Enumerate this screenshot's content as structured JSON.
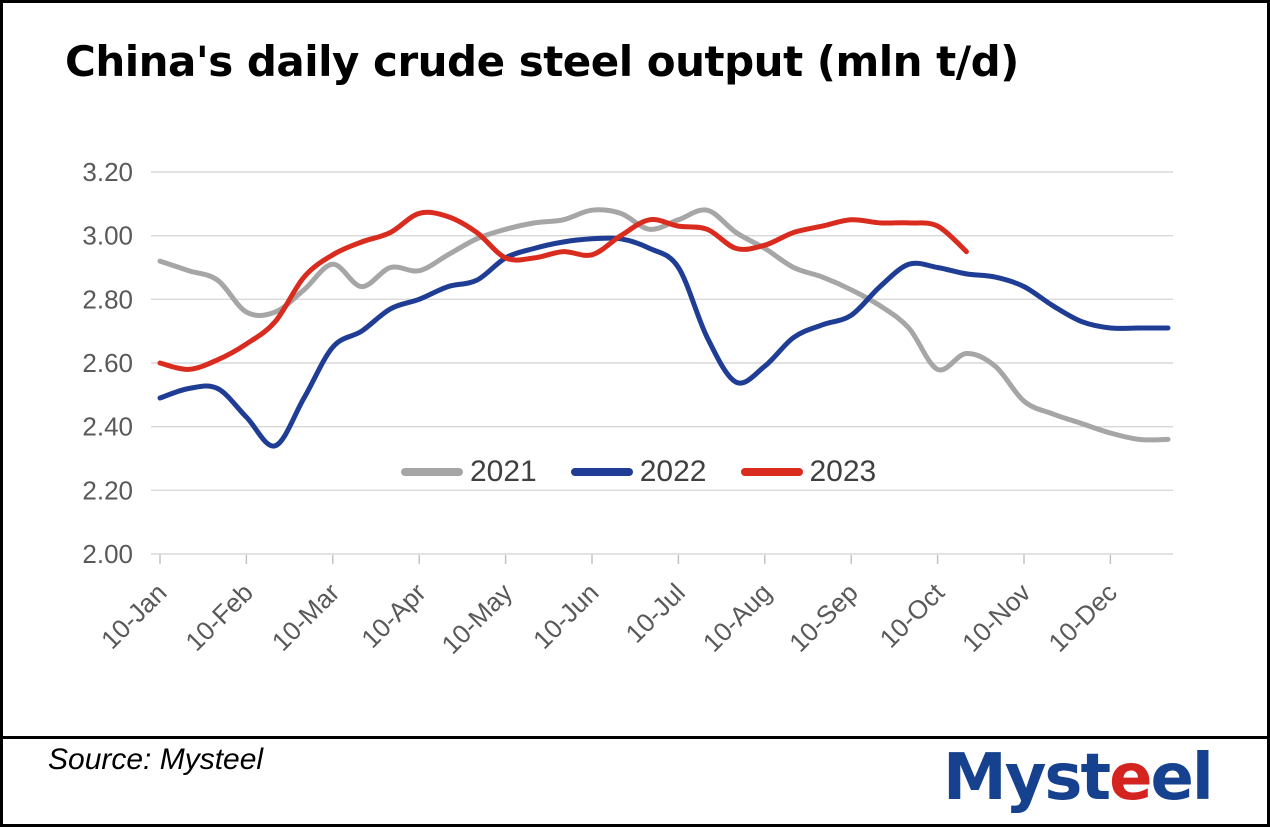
{
  "page": {
    "title": "China's daily crude steel output (mln t/d)"
  },
  "chart_data": {
    "type": "line",
    "title": "China's daily crude steel output (mln t/d)",
    "x_tick_labels": [
      "10-Jan",
      "10-Feb",
      "10-Mar",
      "10-Apr",
      "10-May",
      "10-Jun",
      "10-Jul",
      "10-Aug",
      "10-Sep",
      "10-Oct",
      "10-Nov",
      "10-Dec"
    ],
    "points_per_month": 3,
    "x_note": "data points at ~10-day intervals (10th, 20th, month-end)",
    "y_ticks": [
      "3.20",
      "3.00",
      "2.80",
      "2.60",
      "2.40",
      "2.20",
      "2.00"
    ],
    "ylim": [
      2.0,
      3.2
    ],
    "grid": true,
    "legend_position": "inside-bottom-center",
    "series": [
      {
        "name": "2021",
        "color": "#A6A6A6",
        "values": [
          2.92,
          2.89,
          2.86,
          2.76,
          2.76,
          2.83,
          2.91,
          2.84,
          2.9,
          2.89,
          2.94,
          2.99,
          3.02,
          3.04,
          3.05,
          3.08,
          3.07,
          3.02,
          3.05,
          3.08,
          3.01,
          2.96,
          2.9,
          2.87,
          2.83,
          2.78,
          2.71,
          2.58,
          2.63,
          2.59,
          2.48,
          2.44,
          2.41,
          2.38,
          2.36,
          2.36
        ]
      },
      {
        "name": "2022",
        "color": "#1F3D94",
        "values": [
          2.49,
          2.52,
          2.52,
          2.43,
          2.34,
          2.49,
          2.65,
          2.7,
          2.77,
          2.8,
          2.84,
          2.86,
          2.93,
          2.96,
          2.98,
          2.99,
          2.99,
          2.96,
          2.9,
          2.68,
          2.54,
          2.59,
          2.68,
          2.72,
          2.75,
          2.84,
          2.91,
          2.9,
          2.88,
          2.87,
          2.84,
          2.78,
          2.73,
          2.71,
          2.71,
          2.71
        ]
      },
      {
        "name": "2023",
        "color": "#D92B1E",
        "values": [
          2.6,
          2.58,
          2.61,
          2.66,
          2.73,
          2.87,
          2.94,
          2.98,
          3.01,
          3.07,
          3.06,
          3.01,
          2.93,
          2.93,
          2.95,
          2.94,
          3.0,
          3.05,
          3.03,
          3.02,
          2.96,
          2.97,
          3.01,
          3.03,
          3.05,
          3.04,
          3.04,
          3.03,
          2.95
        ]
      }
    ]
  },
  "footer": {
    "source_label": "Source: Mysteel",
    "logo": {
      "text": "Mysteel",
      "parts": [
        {
          "t": "Myst",
          "color": "#15418E"
        },
        {
          "t": "e",
          "color": "#D42420"
        },
        {
          "t": "e",
          "color": "#15418E"
        },
        {
          "t": "l",
          "color": "#15418E"
        }
      ]
    }
  },
  "style": {
    "gridline_color": "#D9D9D9",
    "tick_color": "#BFBFBF",
    "axis_label_color": "#595959",
    "legend_text_color": "#404040",
    "title_color": "#000000"
  }
}
